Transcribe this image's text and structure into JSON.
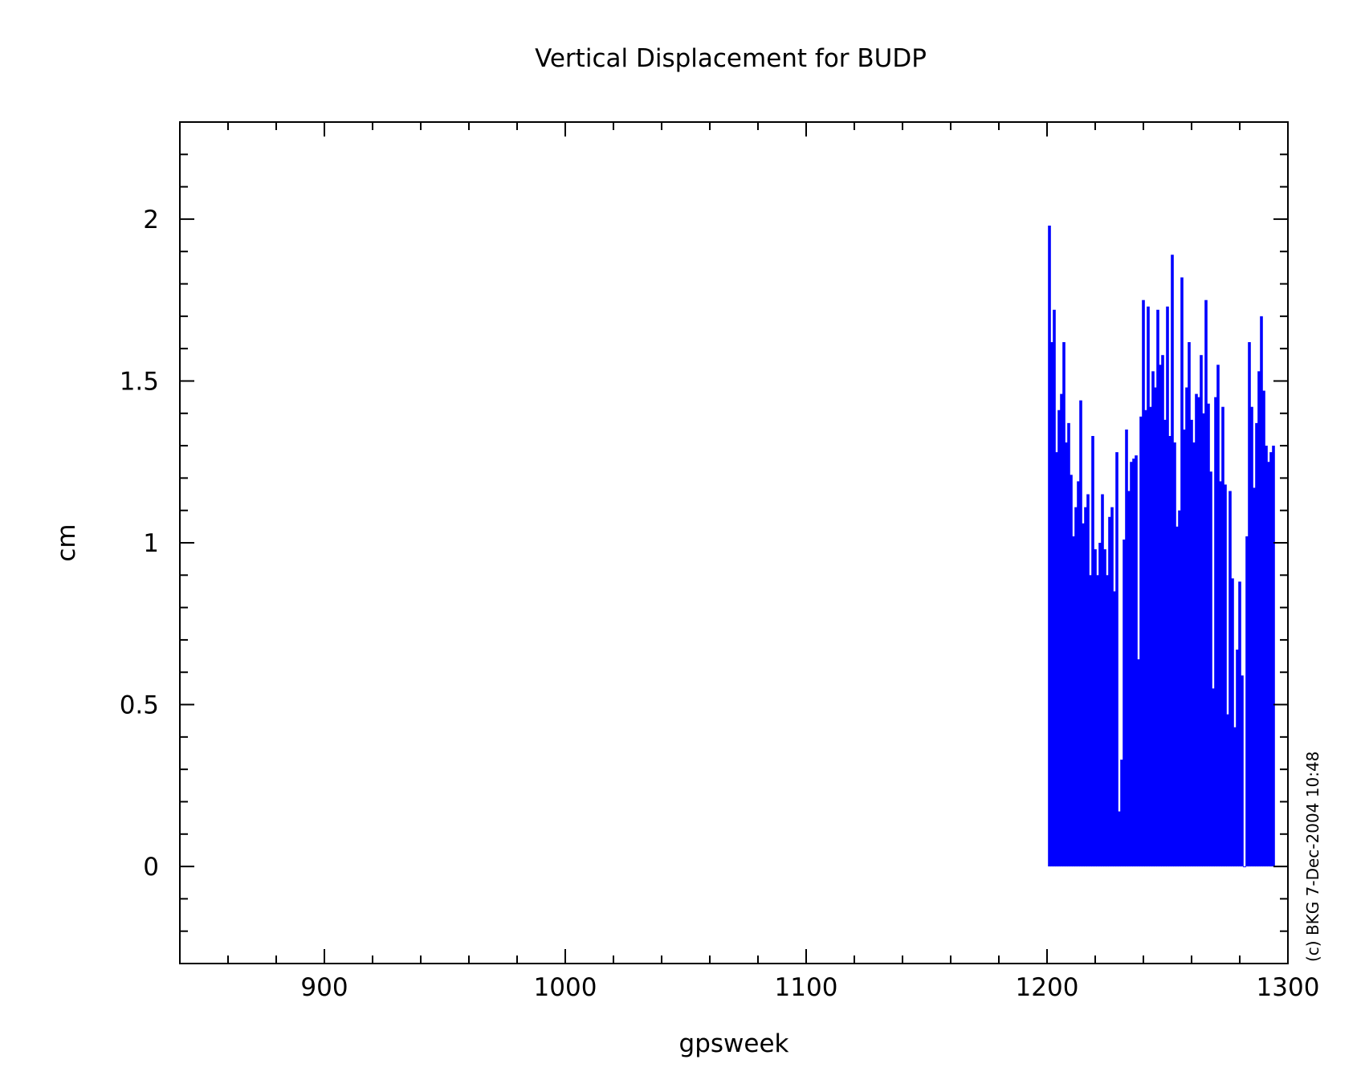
{
  "chart_data": {
    "type": "bar",
    "title": "Vertical Displacement for BUDP",
    "xlabel": "gpsweek",
    "ylabel": "cm",
    "xlim": [
      840,
      1300
    ],
    "ylim": [
      -0.3,
      2.3
    ],
    "xticks": [
      900,
      1000,
      1100,
      1200,
      1300
    ],
    "yticks": [
      0,
      0.5,
      1,
      1.5,
      2
    ],
    "grid": false,
    "legend": "none",
    "colors": {
      "bars": "#0000ff",
      "axes": "#000000",
      "background": "#ffffff"
    },
    "series": [
      {
        "x": [
          1201,
          1202,
          1203,
          1204,
          1205,
          1206,
          1207,
          1208,
          1209,
          1210,
          1211,
          1212,
          1213,
          1214,
          1215,
          1216,
          1217,
          1218,
          1219,
          1220,
          1221,
          1222,
          1223,
          1224,
          1225,
          1226,
          1227,
          1228,
          1229,
          1230,
          1231,
          1232,
          1233,
          1234,
          1235,
          1236,
          1237,
          1238,
          1239,
          1240,
          1241,
          1242,
          1243,
          1244,
          1245,
          1246,
          1247,
          1248,
          1249,
          1250,
          1251,
          1252,
          1253,
          1254,
          1255,
          1256,
          1257,
          1258,
          1259,
          1260,
          1261,
          1262,
          1263,
          1264,
          1265,
          1266,
          1267,
          1268,
          1269,
          1270,
          1271,
          1272,
          1273,
          1274,
          1275,
          1276,
          1277,
          1278,
          1279,
          1280,
          1281,
          1282,
          1283,
          1284,
          1285,
          1286,
          1287,
          1288,
          1289,
          1290,
          1291,
          1292,
          1293,
          1294
        ],
        "values": [
          1.98,
          1.62,
          1.72,
          1.28,
          1.41,
          1.46,
          1.62,
          1.31,
          1.37,
          1.21,
          1.02,
          1.11,
          1.19,
          1.44,
          1.06,
          1.11,
          1.15,
          0.9,
          1.33,
          0.98,
          0.9,
          1.0,
          1.15,
          0.98,
          0.9,
          1.08,
          1.11,
          0.85,
          1.28,
          0.17,
          0.33,
          1.01,
          1.35,
          1.16,
          1.25,
          1.26,
          1.27,
          0.64,
          1.39,
          1.75,
          1.41,
          1.73,
          1.42,
          1.53,
          1.48,
          1.72,
          1.55,
          1.58,
          1.38,
          1.73,
          1.33,
          1.89,
          1.31,
          1.05,
          1.1,
          1.82,
          1.35,
          1.48,
          1.62,
          1.38,
          1.31,
          1.46,
          1.45,
          1.58,
          1.4,
          1.75,
          1.43,
          1.22,
          0.55,
          1.45,
          1.55,
          1.19,
          1.42,
          1.18,
          0.47,
          1.16,
          0.89,
          0.43,
          0.67,
          0.88,
          0.59,
          0.0,
          1.02,
          1.62,
          1.42,
          1.17,
          1.37,
          1.53,
          1.7,
          1.47,
          1.3,
          1.25,
          1.28,
          1.3
        ]
      }
    ]
  },
  "credit": "(c) BKG 7-Dec-2004 10:48"
}
